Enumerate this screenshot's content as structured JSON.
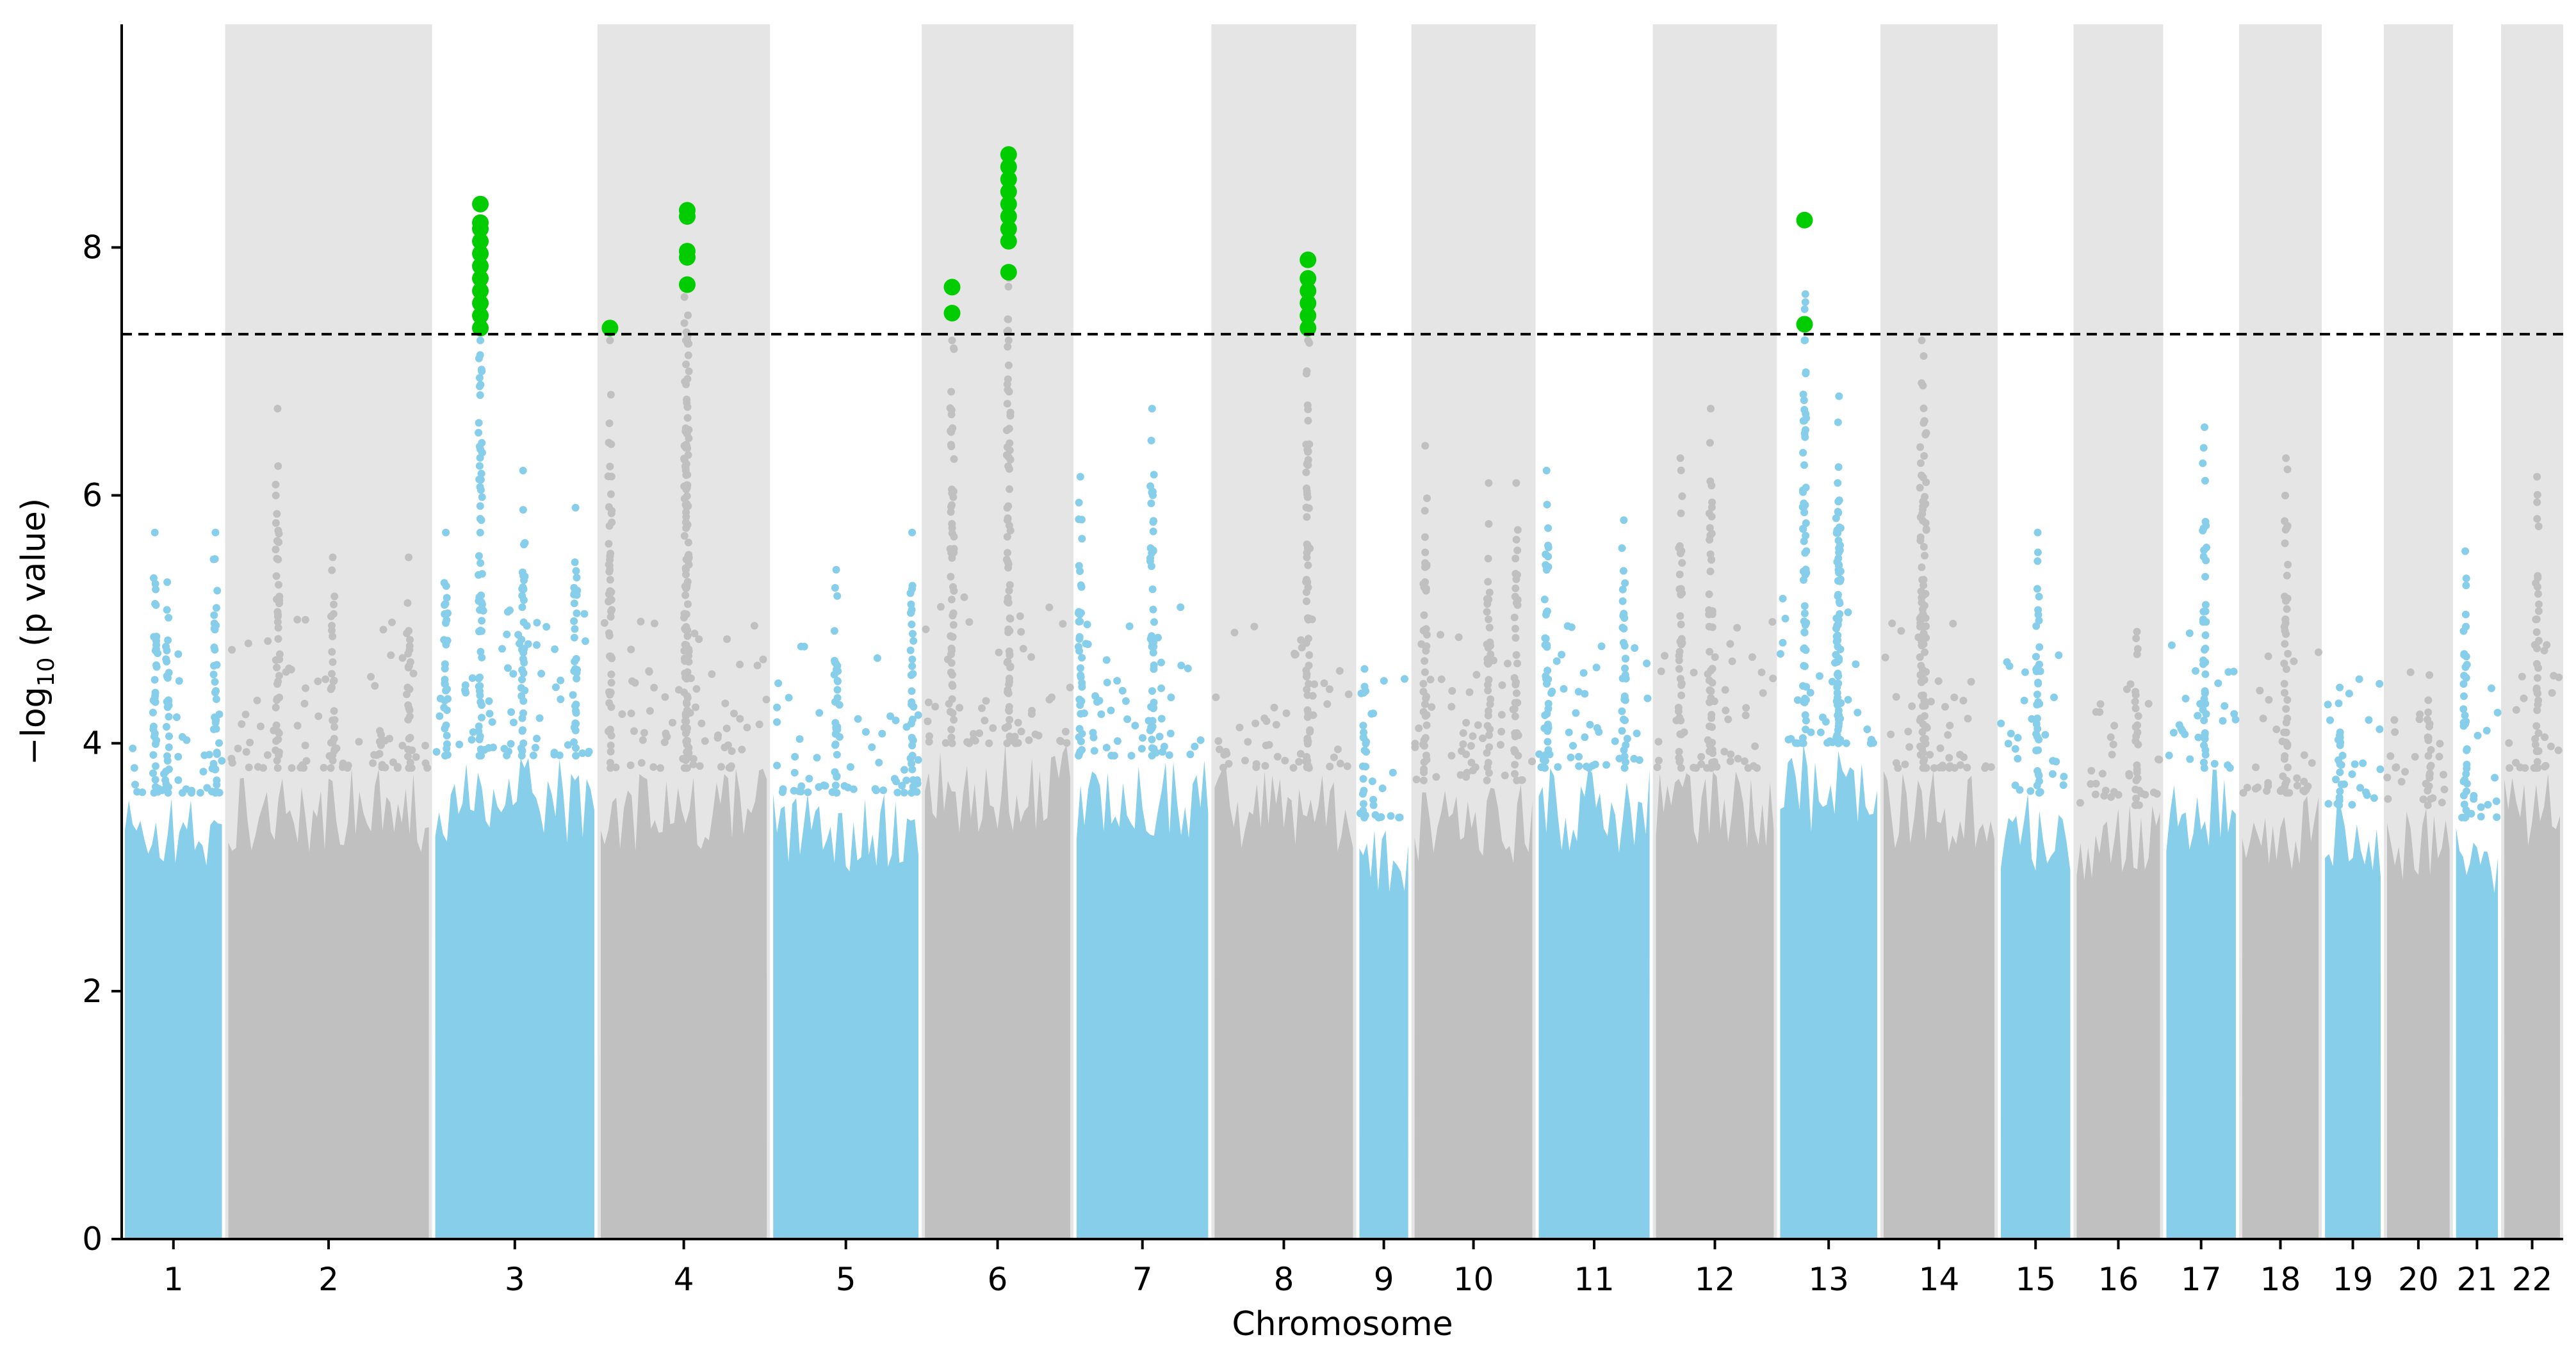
{
  "chart_data": {
    "type": "scatter",
    "subtype": "manhattan",
    "title": "",
    "xlabel": "Chromosome",
    "ylabel": "−log₁₀ (p value)",
    "ylabel_parts": {
      "prefix": "−log",
      "subscript": "10",
      "suffix": " (p value)"
    },
    "ylim": [
      0,
      9.8
    ],
    "yticks": [
      0,
      2,
      4,
      6,
      8
    ],
    "significance_threshold": 7.3,
    "grid": false,
    "legend": "none",
    "colors": {
      "odd_chromosome": "#87CEEB",
      "even_chromosome": "#C0C0C0",
      "significant": "#00CC00",
      "even_band": "#E5E5E5",
      "threshold_line": "#000000"
    },
    "chromosomes": [
      {
        "label": "1",
        "start": 0.0,
        "end": 7.5,
        "base": 3.6,
        "spikes": [
          [
            2.4,
            5.7
          ],
          [
            3.3,
            5.3
          ],
          [
            6.8,
            5.7
          ]
        ]
      },
      {
        "label": "2",
        "start": 7.5,
        "end": 22.5,
        "base": 3.8,
        "spikes": [
          [
            3.8,
            6.7
          ],
          [
            7.8,
            5.5
          ],
          [
            13.3,
            5.5
          ]
        ]
      },
      {
        "label": "3",
        "start": 22.5,
        "end": 34.5,
        "base": 3.9,
        "spikes": [
          [
            1.0,
            5.7
          ],
          [
            3.5,
            8.35
          ],
          [
            6.6,
            6.2
          ],
          [
            10.4,
            5.9
          ]
        ]
      },
      {
        "label": "4",
        "start": 34.5,
        "end": 47.0,
        "base": 3.8,
        "spikes": [
          [
            0.9,
            7.35
          ],
          [
            6.5,
            8.3
          ],
          [
            6.4,
            7.9
          ]
        ]
      },
      {
        "label": "5",
        "start": 47.0,
        "end": 58.0,
        "base": 3.6,
        "spikes": [
          [
            4.8,
            5.4
          ],
          [
            10.3,
            5.7
          ]
        ]
      },
      {
        "label": "6",
        "start": 58.0,
        "end": 69.0,
        "base": 4.0,
        "spikes": [
          [
            2.2,
            7.7
          ],
          [
            6.3,
            8.75
          ]
        ]
      },
      {
        "label": "7",
        "start": 69.0,
        "end": 79.0,
        "base": 3.9,
        "spikes": [
          [
            0.5,
            6.15
          ],
          [
            5.7,
            6.7
          ]
        ]
      },
      {
        "label": "8",
        "start": 79.0,
        "end": 89.5,
        "base": 3.8,
        "spikes": [
          [
            7.0,
            7.9
          ]
        ]
      },
      {
        "label": "9",
        "start": 89.5,
        "end": 93.5,
        "base": 3.4,
        "spikes": [
          [
            0.6,
            4.6
          ]
        ]
      },
      {
        "label": "10",
        "start": 93.5,
        "end": 102.5,
        "base": 3.7,
        "spikes": [
          [
            1.0,
            6.4
          ],
          [
            5.6,
            6.1
          ],
          [
            7.6,
            6.1
          ]
        ]
      },
      {
        "label": "11",
        "start": 102.5,
        "end": 111.0,
        "base": 3.8,
        "spikes": [
          [
            0.8,
            6.2
          ],
          [
            6.4,
            5.8
          ]
        ]
      },
      {
        "label": "12",
        "start": 111.0,
        "end": 120.0,
        "base": 3.8,
        "spikes": [
          [
            2.0,
            6.3
          ],
          [
            4.2,
            6.7
          ]
        ]
      },
      {
        "label": "13",
        "start": 120.0,
        "end": 127.5,
        "base": 4.0,
        "spikes": [
          [
            2.0,
            8.2
          ],
          [
            4.5,
            6.8
          ],
          [
            4.4,
            6.1
          ]
        ]
      },
      {
        "label": "14",
        "start": 127.5,
        "end": 136.0,
        "base": 3.8,
        "spikes": [
          [
            3.0,
            7.25
          ],
          [
            3.2,
            6.6
          ]
        ]
      },
      {
        "label": "15",
        "start": 136.0,
        "end": 141.5,
        "base": 3.6,
        "spikes": [
          [
            2.9,
            5.7
          ]
        ]
      },
      {
        "label": "16",
        "start": 141.5,
        "end": 148.0,
        "base": 3.5,
        "spikes": [
          [
            4.6,
            4.9
          ]
        ]
      },
      {
        "label": "17",
        "start": 148.0,
        "end": 153.5,
        "base": 3.8,
        "spikes": [
          [
            3.0,
            6.55
          ]
        ]
      },
      {
        "label": "18",
        "start": 153.5,
        "end": 159.5,
        "base": 3.6,
        "spikes": [
          [
            3.4,
            6.3
          ]
        ]
      },
      {
        "label": "19",
        "start": 159.5,
        "end": 164.0,
        "base": 3.5,
        "spikes": [
          [
            1.3,
            4.45
          ]
        ]
      },
      {
        "label": "20",
        "start": 164.0,
        "end": 169.0,
        "base": 3.5,
        "spikes": [
          [
            3.3,
            4.55
          ]
        ]
      },
      {
        "label": "21",
        "start": 169.0,
        "end": 172.5,
        "base": 3.4,
        "spikes": [
          [
            0.9,
            5.55
          ]
        ]
      },
      {
        "label": "22",
        "start": 172.5,
        "end": 177.0,
        "base": 3.8,
        "spikes": [
          [
            2.6,
            6.15
          ]
        ]
      }
    ],
    "significant_points": [
      {
        "chromosome": "3",
        "x": 26.0,
        "y": [
          7.35,
          7.45,
          7.55,
          7.65,
          7.75,
          7.85,
          7.95,
          8.05,
          8.15,
          8.2,
          8.35
        ]
      },
      {
        "chromosome": "4",
        "x": 35.4,
        "y": [
          7.35
        ]
      },
      {
        "chromosome": "4",
        "x": 41.0,
        "y": [
          7.7,
          7.92,
          7.97,
          8.25,
          8.3
        ]
      },
      {
        "chromosome": "6",
        "x": 60.2,
        "y": [
          7.47,
          7.68
        ]
      },
      {
        "chromosome": "6",
        "x": 64.3,
        "y": [
          7.8,
          8.05,
          8.15,
          8.25,
          8.35,
          8.45,
          8.55,
          8.65,
          8.75
        ]
      },
      {
        "chromosome": "8",
        "x": 86.0,
        "y": [
          7.35,
          7.45,
          7.55,
          7.65,
          7.75,
          7.9
        ]
      },
      {
        "chromosome": "13",
        "x": 122.0,
        "y": [
          7.38,
          8.22
        ]
      }
    ]
  }
}
